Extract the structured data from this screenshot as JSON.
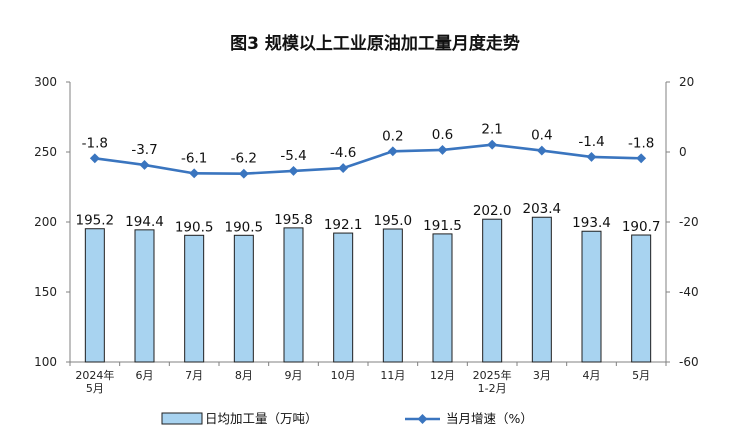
{
  "chart_data": {
    "type": "bar+line",
    "title": "图3  规模以上工业原油加工量月度走势",
    "categories": [
      [
        "2024年",
        "5月"
      ],
      [
        "6月"
      ],
      [
        "7月"
      ],
      [
        "8月"
      ],
      [
        "9月"
      ],
      [
        "10月"
      ],
      [
        "11月"
      ],
      [
        "12月"
      ],
      [
        "2025年",
        "1-2月"
      ],
      [
        "3月"
      ],
      [
        "4月"
      ],
      [
        "5月"
      ]
    ],
    "series": [
      {
        "name": "日均加工量（万吨）",
        "type": "bar",
        "axis": "left",
        "color": "#a8d3f0",
        "values": [
          195.2,
          194.4,
          190.5,
          190.5,
          195.8,
          192.1,
          195.0,
          191.5,
          202.0,
          203.4,
          193.4,
          190.7
        ],
        "labels": [
          "195.2",
          "194.4",
          "190.5",
          "190.5",
          "195.8",
          "192.1",
          "195.0",
          "191.5",
          "202.0",
          "203.4",
          "193.4",
          "190.7"
        ]
      },
      {
        "name": "当月增速（%）",
        "type": "line",
        "axis": "right",
        "color": "#3a75bf",
        "values": [
          -1.8,
          -3.7,
          -6.1,
          -6.2,
          -5.4,
          -4.6,
          0.2,
          0.6,
          2.1,
          0.4,
          -1.4,
          -1.8
        ],
        "labels": [
          "-1.8",
          "-3.7",
          "-6.1",
          "-6.2",
          "-5.4",
          "-4.6",
          "0.2",
          "0.6",
          "2.1",
          "0.4",
          "-1.4",
          "-1.8"
        ]
      }
    ],
    "y_left": {
      "min": 100,
      "max": 300,
      "ticks": [
        "100",
        "150",
        "200",
        "250",
        "300"
      ]
    },
    "y_right": {
      "min": -60,
      "max": 20,
      "ticks": [
        "-60",
        "-40",
        "-20",
        "0",
        "20"
      ]
    },
    "grid": false,
    "legend_position": "bottom"
  }
}
